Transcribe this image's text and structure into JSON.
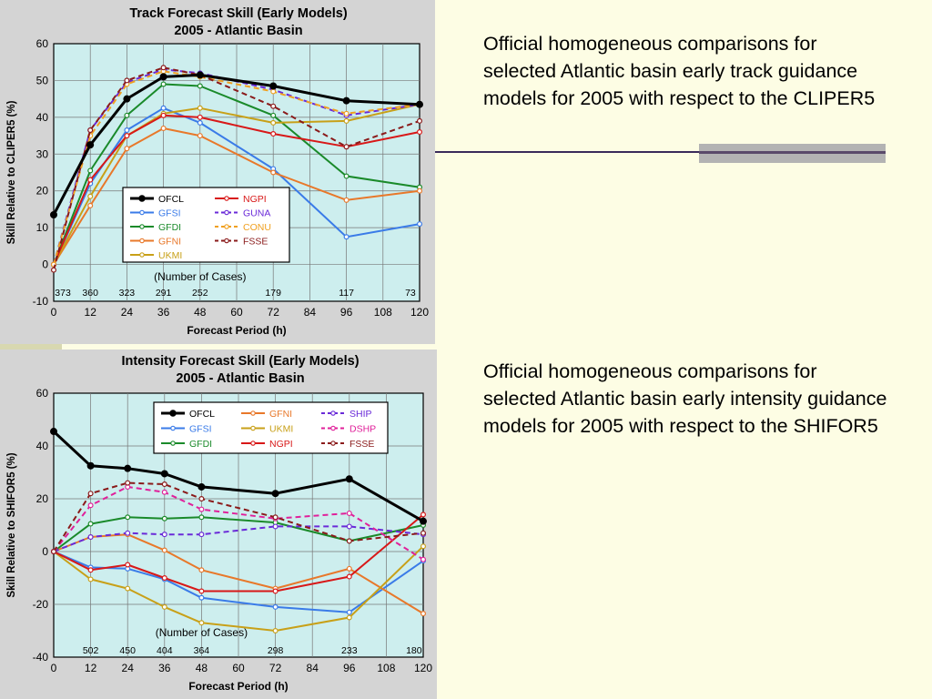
{
  "descriptions": {
    "top": "Official homogeneous comparisons for selected Atlantic basin early track guidance models for 2005 with respect to the CLIPER5",
    "bottom": "Official homogeneous comparisons for selected Atlantic basin early intensity guidance models for 2005 with respect to the SHIFOR5"
  },
  "chart_data": [
    {
      "type": "line",
      "title": "Track Forecast Skill (Early Models)",
      "subtitle": "2005 - Atlantic Basin",
      "xlabel": "Forecast Period (h)",
      "ylabel": "Skill Relative to CLIPER5 (%)",
      "xlim": [
        0,
        120
      ],
      "ylim": [
        -10,
        60
      ],
      "xticks": [
        0,
        12,
        24,
        36,
        48,
        60,
        72,
        84,
        96,
        108,
        120
      ],
      "yticks": [
        -10,
        0,
        10,
        20,
        30,
        40,
        50,
        60
      ],
      "grid": true,
      "legend_position": "lower-left",
      "legend_columns": 2,
      "cases_label": "(Number of Cases)",
      "cases": [
        {
          "x": 3,
          "label": "373"
        },
        {
          "x": 12,
          "label": "360"
        },
        {
          "x": 24,
          "label": "323"
        },
        {
          "x": 36,
          "label": "291"
        },
        {
          "x": 48,
          "label": "252"
        },
        {
          "x": 72,
          "label": "179"
        },
        {
          "x": 96,
          "label": "117"
        },
        {
          "x": 117,
          "label": "73"
        }
      ],
      "series": [
        {
          "name": "OFCL",
          "color": "#000000",
          "dash": "solid",
          "width": 3,
          "marker": "filled",
          "x": [
            0,
            12,
            24,
            36,
            48,
            72,
            96,
            120
          ],
          "y": [
            13.5,
            32.5,
            45,
            51,
            51.5,
            48.5,
            44.5,
            43.5
          ]
        },
        {
          "name": "GFSI",
          "color": "#3a7be8",
          "dash": "solid",
          "width": 2,
          "marker": "open",
          "x": [
            0,
            12,
            24,
            36,
            48,
            72,
            96,
            120
          ],
          "y": [
            0,
            22,
            36.5,
            42.5,
            38.5,
            26,
            7.5,
            11
          ]
        },
        {
          "name": "GFDI",
          "color": "#1a8a2a",
          "dash": "solid",
          "width": 2,
          "marker": "open",
          "x": [
            0,
            12,
            24,
            36,
            48,
            72,
            96,
            120
          ],
          "y": [
            0,
            25.5,
            40.5,
            49,
            48.5,
            40.5,
            24,
            21
          ]
        },
        {
          "name": "GFNI",
          "color": "#e8782a",
          "dash": "solid",
          "width": 2,
          "marker": "open",
          "x": [
            0,
            12,
            24,
            36,
            48,
            72,
            96,
            120
          ],
          "y": [
            0,
            16,
            31.5,
            37,
            35,
            25,
            17.5,
            20
          ]
        },
        {
          "name": "UKMI",
          "color": "#c8a018",
          "dash": "solid",
          "width": 2,
          "marker": "open",
          "x": [
            0,
            12,
            24,
            36,
            48,
            72,
            96,
            120
          ],
          "y": [
            0,
            18.5,
            35,
            41,
            42.5,
            38.5,
            39,
            43.5
          ]
        },
        {
          "name": "NGPI",
          "color": "#d81818",
          "dash": "solid",
          "width": 2,
          "marker": "open",
          "x": [
            0,
            12,
            24,
            36,
            48,
            72,
            96,
            120
          ],
          "y": [
            0,
            23,
            35,
            40.5,
            40,
            35.5,
            32,
            36
          ]
        },
        {
          "name": "GUNA",
          "color": "#6a2ad8",
          "dash": "dash",
          "width": 2,
          "marker": "open",
          "x": [
            0,
            12,
            24,
            36,
            48,
            72,
            96,
            120
          ],
          "y": [
            0,
            36.5,
            49.5,
            53,
            52,
            47.5,
            40.5,
            43.5
          ]
        },
        {
          "name": "CONU",
          "color": "#f0a020",
          "dash": "dash",
          "width": 2,
          "marker": "open",
          "x": [
            0,
            12,
            24,
            36,
            48,
            72,
            96,
            120
          ],
          "y": [
            0,
            35,
            49,
            52.5,
            51,
            47,
            41,
            43.5
          ]
        },
        {
          "name": "FSSE",
          "color": "#8a1a1a",
          "dash": "dash",
          "width": 2,
          "marker": "open",
          "x": [
            0,
            12,
            24,
            36,
            48,
            72,
            96,
            120
          ],
          "y": [
            -1.5,
            36.5,
            50,
            53.5,
            51.5,
            43,
            32,
            39
          ]
        }
      ],
      "legend_order": [
        "OFCL",
        "NGPI",
        "GFSI",
        "GUNA",
        "GFDI",
        "CONU",
        "GFNI",
        "FSSE",
        "UKMI"
      ]
    },
    {
      "type": "line",
      "title": "Intensity Forecast Skill (Early Models)",
      "subtitle": "2005 - Atlantic Basin",
      "xlabel": "Forecast Period (h)",
      "ylabel": "Skill Relative to SHIFOR5 (%)",
      "xlim": [
        0,
        120
      ],
      "ylim": [
        -40,
        60
      ],
      "xticks": [
        0,
        12,
        24,
        36,
        48,
        60,
        72,
        84,
        96,
        108,
        120
      ],
      "yticks": [
        -40,
        -20,
        0,
        20,
        40,
        60
      ],
      "grid": true,
      "legend_position": "top-right",
      "legend_columns": 3,
      "cases_label": "(Number of Cases)",
      "cases": [
        {
          "x": 12,
          "label": "502"
        },
        {
          "x": 24,
          "label": "450"
        },
        {
          "x": 36,
          "label": "404"
        },
        {
          "x": 48,
          "label": "364"
        },
        {
          "x": 72,
          "label": "298"
        },
        {
          "x": 96,
          "label": "233"
        },
        {
          "x": 117,
          "label": "180"
        }
      ],
      "series": [
        {
          "name": "OFCL",
          "color": "#000000",
          "dash": "solid",
          "width": 3,
          "marker": "filled",
          "x": [
            0,
            12,
            24,
            36,
            48,
            72,
            96,
            120
          ],
          "y": [
            45.5,
            32.5,
            31.5,
            29.5,
            24.5,
            22,
            27.5,
            11.5
          ]
        },
        {
          "name": "GFSI",
          "color": "#3a7be8",
          "dash": "solid",
          "width": 2,
          "marker": "open",
          "x": [
            0,
            12,
            24,
            36,
            48,
            72,
            96,
            120
          ],
          "y": [
            0,
            -6,
            -6.5,
            -10.5,
            -17.5,
            -21,
            -23,
            -3.5
          ]
        },
        {
          "name": "GFDI",
          "color": "#1a8a2a",
          "dash": "solid",
          "width": 2,
          "marker": "open",
          "x": [
            0,
            12,
            24,
            36,
            48,
            72,
            96,
            120
          ],
          "y": [
            0,
            10.5,
            13,
            12.5,
            13,
            11,
            4,
            10
          ]
        },
        {
          "name": "GFNI",
          "color": "#e8782a",
          "dash": "solid",
          "width": 2,
          "marker": "open",
          "x": [
            0,
            12,
            24,
            36,
            48,
            72,
            96,
            120
          ],
          "y": [
            0,
            5.5,
            6.5,
            0.5,
            -7,
            -14,
            -6.5,
            -23.5
          ]
        },
        {
          "name": "UKMI",
          "color": "#c8a018",
          "dash": "solid",
          "width": 2,
          "marker": "open",
          "x": [
            0,
            12,
            24,
            36,
            48,
            72,
            96,
            120
          ],
          "y": [
            0,
            -10.5,
            -14,
            -21,
            -27,
            -30,
            -25,
            2
          ]
        },
        {
          "name": "NGPI",
          "color": "#d81818",
          "dash": "solid",
          "width": 2,
          "marker": "open",
          "x": [
            0,
            12,
            24,
            36,
            48,
            72,
            96,
            120
          ],
          "y": [
            0,
            -7,
            -5,
            -10,
            -15,
            -15,
            -9.5,
            14
          ]
        },
        {
          "name": "SHIP",
          "color": "#6a2ad8",
          "dash": "dash",
          "width": 2,
          "marker": "open",
          "x": [
            0,
            12,
            24,
            36,
            48,
            72,
            96,
            120
          ],
          "y": [
            0,
            5.5,
            7,
            6.5,
            6.5,
            9.5,
            9.5,
            6.5
          ]
        },
        {
          "name": "DSHP",
          "color": "#e0209a",
          "dash": "dash",
          "width": 2,
          "marker": "open",
          "x": [
            0,
            12,
            24,
            36,
            48,
            72,
            96,
            120
          ],
          "y": [
            0,
            17.5,
            24.5,
            22.5,
            16,
            12.5,
            14.5,
            -3
          ]
        },
        {
          "name": "FSSE",
          "color": "#8a1a1a",
          "dash": "dash",
          "width": 2,
          "marker": "open",
          "x": [
            0,
            12,
            24,
            36,
            48,
            72,
            96,
            120
          ],
          "y": [
            0,
            22,
            26,
            25.5,
            20,
            13,
            4,
            7
          ]
        }
      ],
      "legend_order": [
        "OFCL",
        "GFNI",
        "SHIP",
        "GFSI",
        "UKMI",
        "DSHP",
        "GFDI",
        "NGPI",
        "FSSE"
      ]
    }
  ]
}
